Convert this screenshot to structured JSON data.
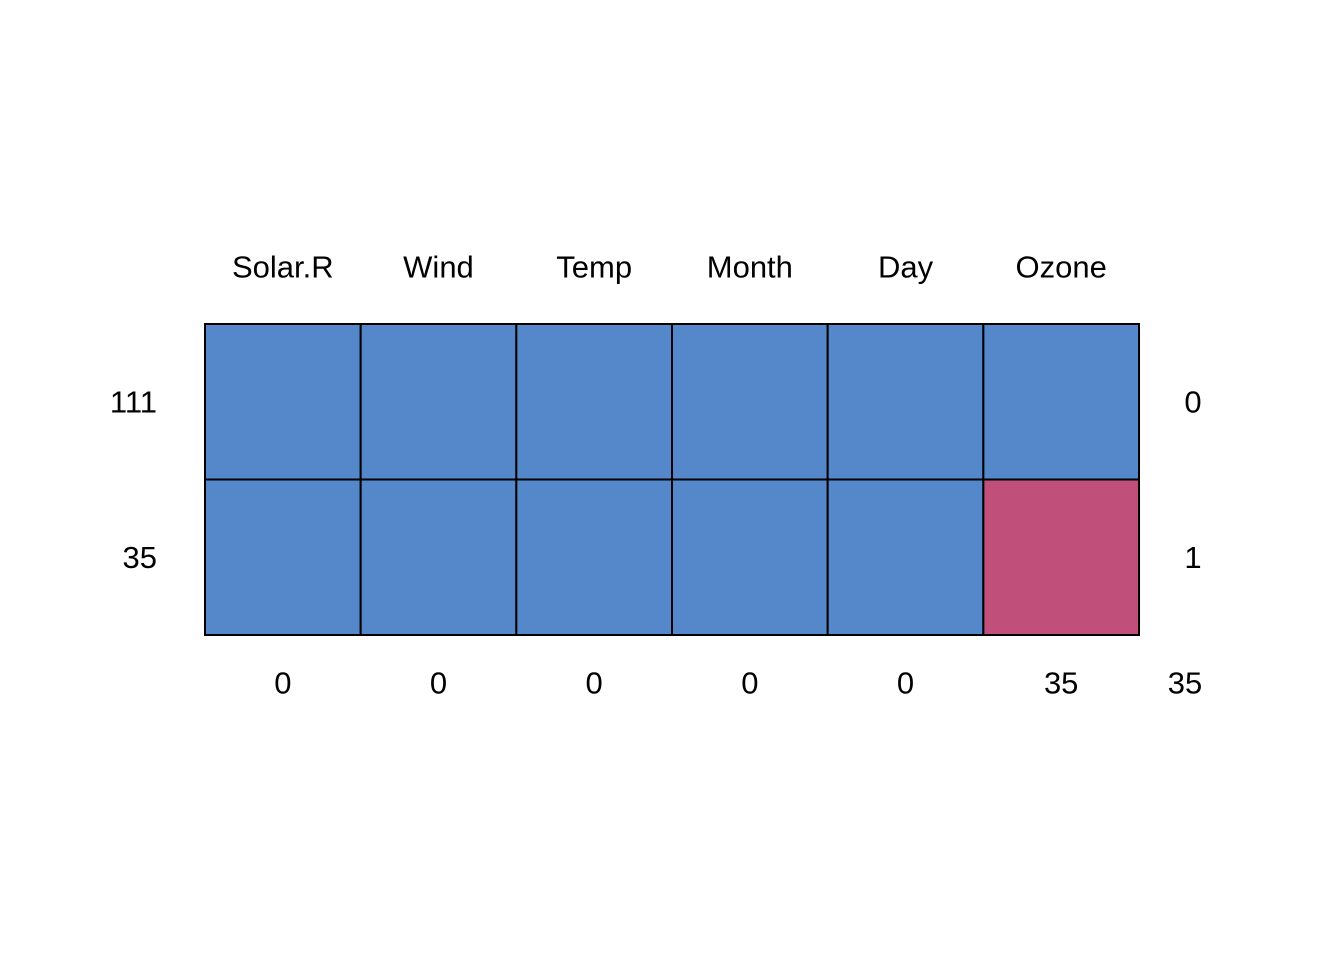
{
  "chart_data": {
    "type": "heatmap",
    "columns": [
      "Solar.R",
      "Wind",
      "Temp",
      "Month",
      "Day",
      "Ozone"
    ],
    "rows": [
      {
        "count": "111",
        "pattern": [
          1,
          1,
          1,
          1,
          1,
          1
        ],
        "missing_vars": "0"
      },
      {
        "count": "35",
        "pattern": [
          1,
          1,
          1,
          1,
          1,
          0
        ],
        "missing_vars": "1"
      }
    ],
    "column_missing_totals": [
      "0",
      "0",
      "0",
      "0",
      "0",
      "35"
    ],
    "total_missing": "35",
    "colors": {
      "observed": "#5488CB",
      "missing": "#C04F7A",
      "border": "#000000"
    }
  }
}
